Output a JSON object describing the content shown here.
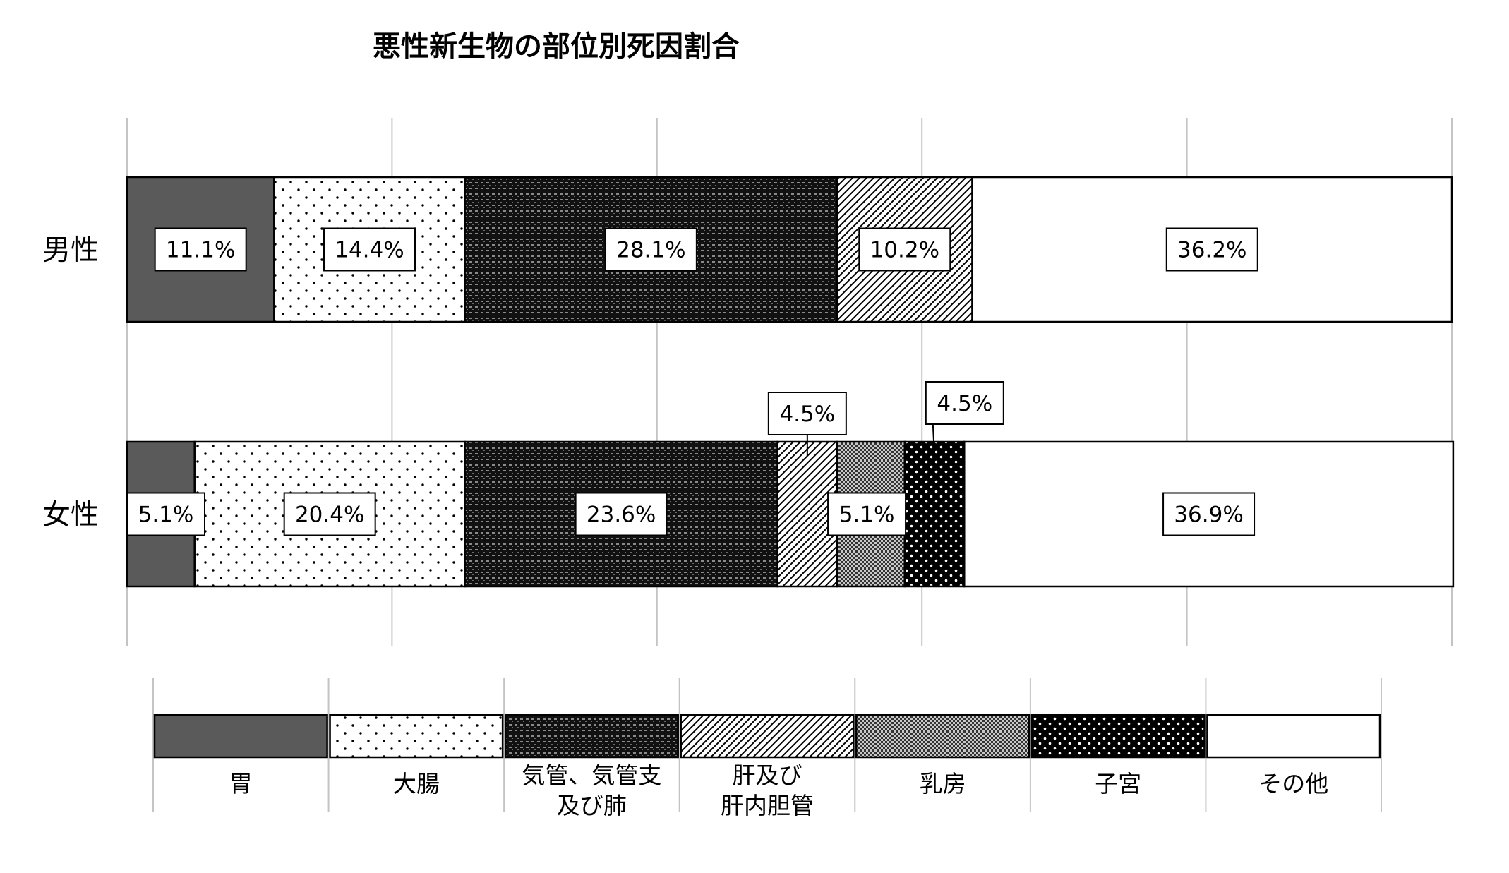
{
  "chart_data": {
    "type": "bar",
    "orientation": "horizontal",
    "stacked": "percent",
    "title": "悪性新生物の部位別死因割合",
    "categories": [
      "男性",
      "女性"
    ],
    "xlim": [
      0,
      100
    ],
    "grid": true,
    "legend_position": "bottom",
    "series": [
      {
        "name": "胃",
        "values": [
          11.1,
          5.1
        ],
        "labels": [
          "11.1%",
          "5.1%"
        ],
        "fill": "#5a5a5a",
        "pattern": "solid"
      },
      {
        "name": "大腸",
        "values": [
          14.4,
          20.4
        ],
        "labels": [
          "14.4%",
          "20.4%"
        ],
        "fill": "#ffffff",
        "pattern": "dots"
      },
      {
        "name": "気管、気管支及び肺",
        "values": [
          28.1,
          23.6
        ],
        "labels": [
          "28.1%",
          "23.6%"
        ],
        "fill": "#1a1a1a",
        "pattern": "dense-grid"
      },
      {
        "name": "肝及び肝内胆管",
        "values": [
          10.2,
          4.5
        ],
        "labels": [
          "10.2%",
          "4.5%"
        ],
        "fill": "#ffffff",
        "pattern": "diagonal"
      },
      {
        "name": "乳房",
        "values": [
          0,
          5.1
        ],
        "labels": [
          "",
          "5.1%"
        ],
        "fill": "#8c8c8c",
        "pattern": "checker"
      },
      {
        "name": "子宮",
        "values": [
          0,
          4.5
        ],
        "labels": [
          "",
          "4.5%"
        ],
        "fill": "#000000",
        "pattern": "white-dots"
      },
      {
        "name": "その他",
        "values": [
          36.2,
          36.9
        ],
        "labels": [
          "36.2%",
          "36.9%"
        ],
        "fill": "#ffffff",
        "pattern": "solid"
      }
    ],
    "legend_labels": [
      [
        "胃"
      ],
      [
        "大腸"
      ],
      [
        "気管、気管支",
        "及び肺"
      ],
      [
        "肝及び",
        "肝内胆管"
      ],
      [
        "乳房"
      ],
      [
        "子宮"
      ],
      [
        "その他"
      ]
    ]
  }
}
